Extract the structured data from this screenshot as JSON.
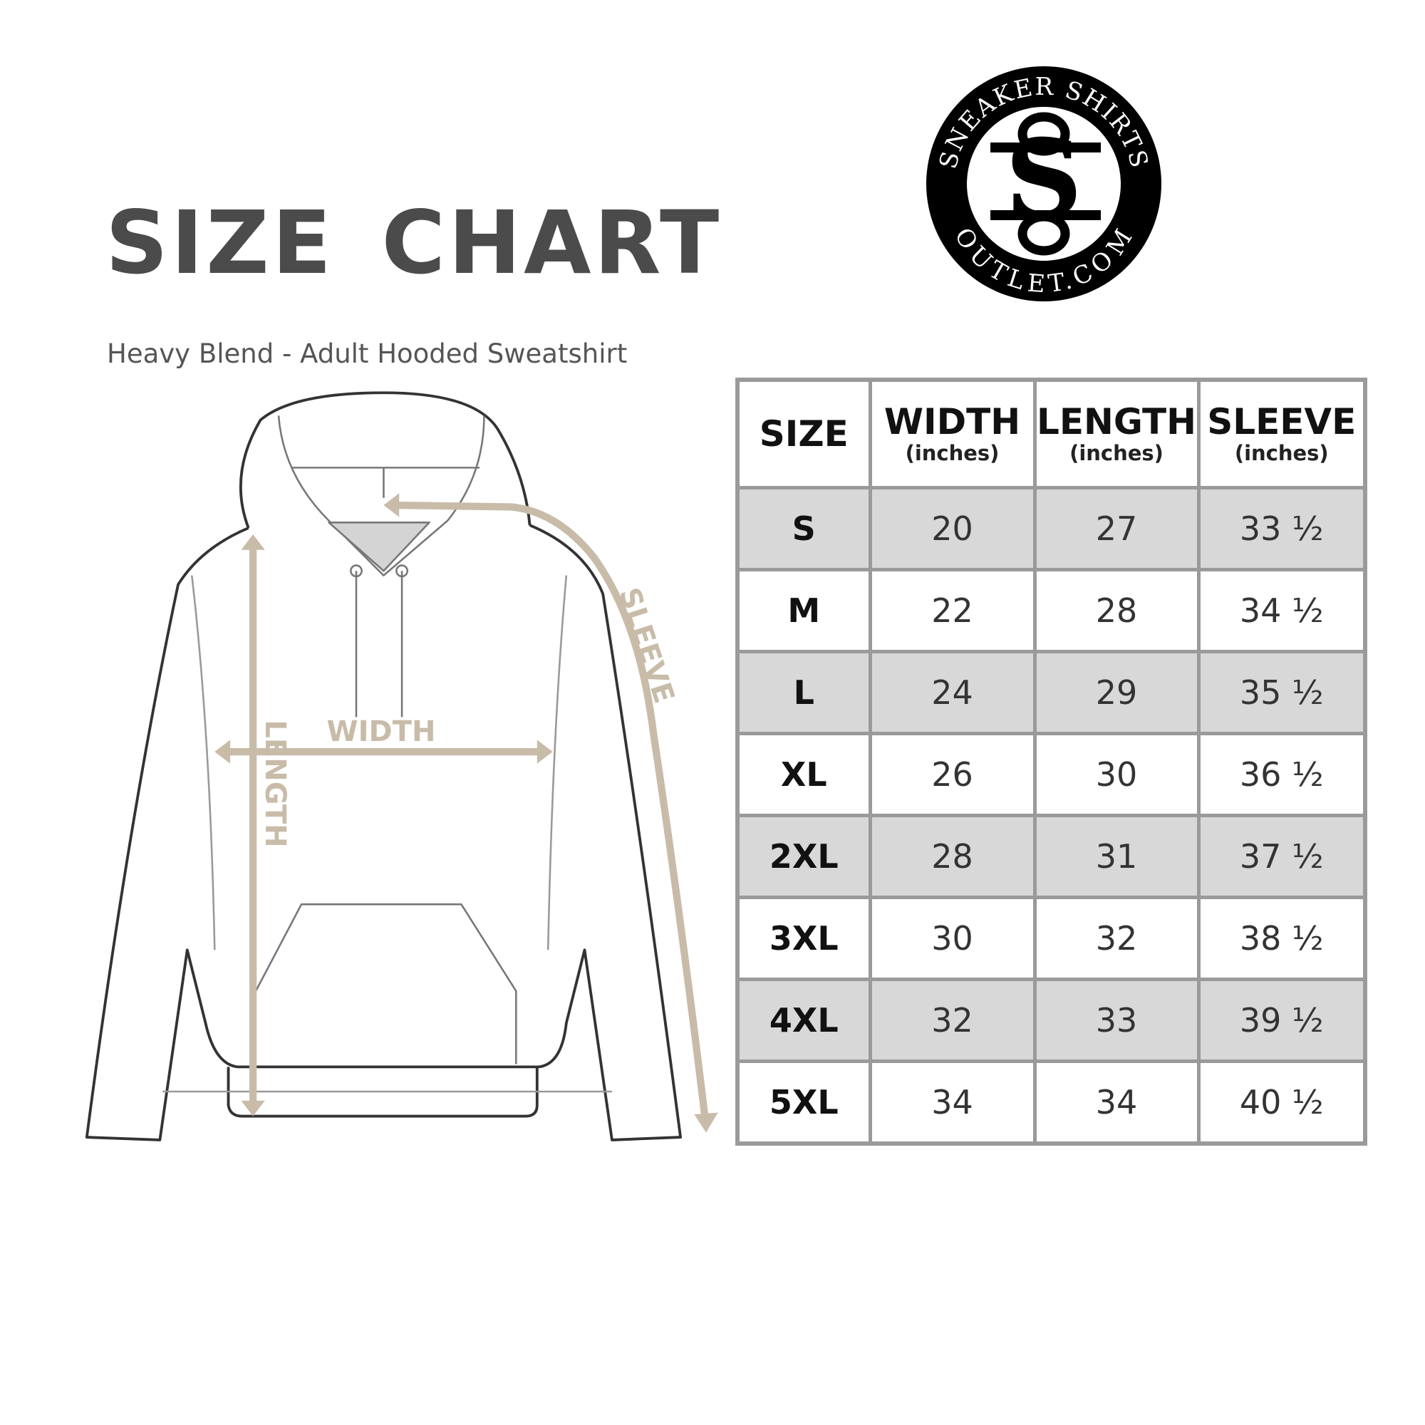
{
  "title": "SIZE CHART",
  "subtitle": "Heavy Blend - Adult Hooded Sweatshirt",
  "logo": {
    "top_text": "SNEAKER SHIRTS",
    "bottom_text": "OUTLET.COM",
    "monogram": "SS"
  },
  "diagram": {
    "width_label": "WIDTH",
    "length_label": "LENGTH",
    "sleeve_label": "SLEEVE",
    "arrow_color": "#c8bca9"
  },
  "table": {
    "headers": [
      {
        "main": "SIZE",
        "sub": ""
      },
      {
        "main": "WIDTH",
        "sub": "(inches)"
      },
      {
        "main": "LENGTH",
        "sub": "(inches)"
      },
      {
        "main": "SLEEVE",
        "sub": "(inches)"
      }
    ],
    "rows": [
      [
        "S",
        "20",
        "27",
        "33 ½"
      ],
      [
        "M",
        "22",
        "28",
        "34 ½"
      ],
      [
        "L",
        "24",
        "29",
        "35 ½"
      ],
      [
        "XL",
        "26",
        "30",
        "36 ½"
      ],
      [
        "2XL",
        "28",
        "31",
        "37 ½"
      ],
      [
        "3XL",
        "30",
        "32",
        "38 ½"
      ],
      [
        "4XL",
        "32",
        "33",
        "39 ½"
      ],
      [
        "5XL",
        "34",
        "34",
        "40 ½"
      ]
    ],
    "stripe_color": "#d8d8d8"
  }
}
